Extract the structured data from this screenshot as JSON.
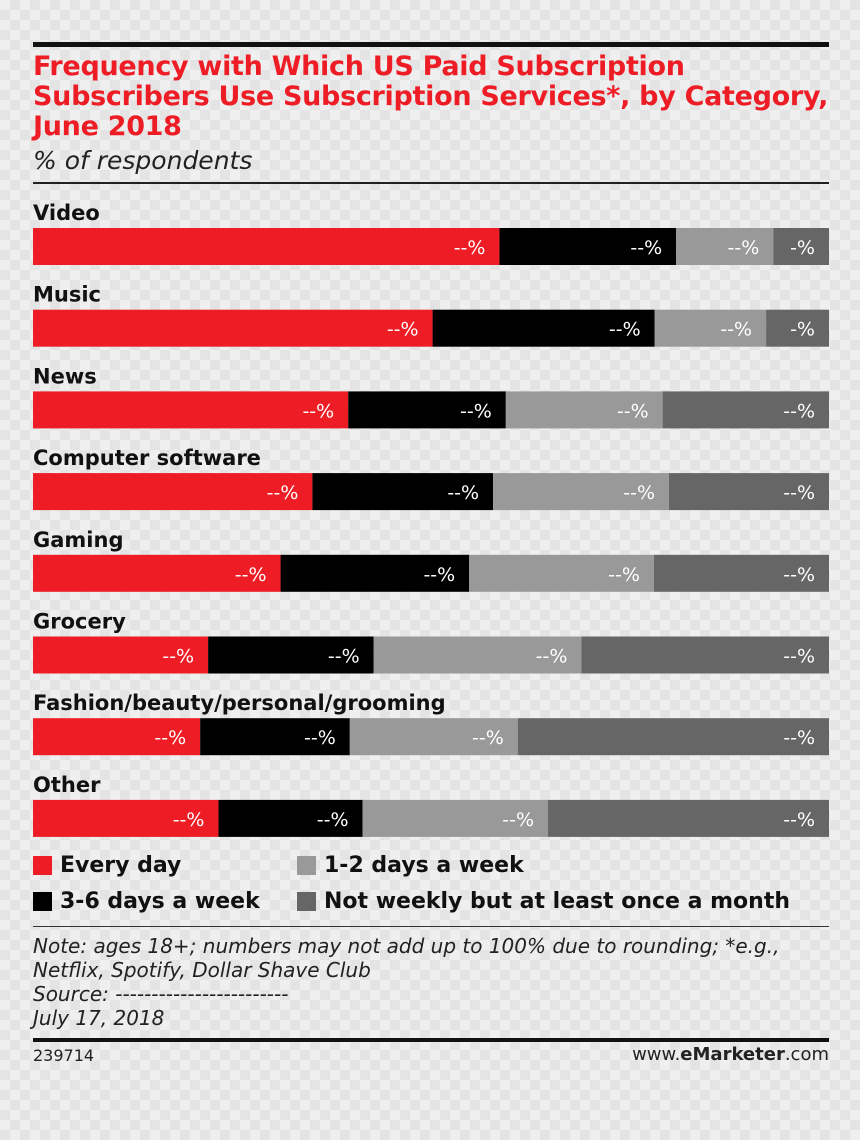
{
  "header": {
    "title": "Frequency with Which US Paid Subscription Subscribers Use Subscription Services*, by Category, June 2018",
    "subtitle": "% of respondents"
  },
  "colors": {
    "every_day": "#ee1c25",
    "days_3_6": "#000000",
    "days_1_2": "#999999",
    "not_weekly": "#666666"
  },
  "chart_data": {
    "type": "bar",
    "orientation": "horizontal",
    "stacked": true,
    "title": "Frequency with Which US Paid Subscription Subscribers Use Subscription Services*, by Category, June 2018",
    "subtitle": "% of respondents",
    "categories": [
      "Video",
      "Music",
      "News",
      "Computer software",
      "Gaming",
      "Grocery",
      "Fashion/beauty/personal/grooming",
      "Other"
    ],
    "series": [
      {
        "name": "Every day",
        "color": "#ee1c25",
        "values": [
          58.6,
          50.2,
          39.6,
          35.1,
          31.1,
          22.0,
          21.0,
          23.3
        ],
        "labels": [
          "--%",
          "--%",
          "--%",
          "--%",
          "--%",
          "--%",
          "--%",
          "--%"
        ]
      },
      {
        "name": "3-6 days a week",
        "color": "#000000",
        "values": [
          22.2,
          27.9,
          19.8,
          22.7,
          23.7,
          20.8,
          18.8,
          18.1
        ],
        "labels": [
          "--%",
          "--%",
          "--%",
          "--%",
          "--%",
          "--%",
          "--%",
          "--%"
        ]
      },
      {
        "name": "1-2 days a week",
        "color": "#999999",
        "values": [
          12.2,
          14.0,
          19.7,
          22.1,
          23.2,
          26.1,
          21.1,
          23.3
        ],
        "labels": [
          "--%",
          "--%",
          "--%",
          "--%",
          "--%",
          "--%",
          "--%",
          "--%"
        ]
      },
      {
        "name": "Not weekly but at least once a month",
        "color": "#666666",
        "values": [
          7.0,
          7.9,
          20.9,
          20.1,
          22.0,
          31.1,
          39.1,
          35.3
        ],
        "labels": [
          "-%",
          "-%",
          "--%",
          "--%",
          "--%",
          "--%",
          "--%",
          "--%"
        ]
      }
    ],
    "xlim": [
      0,
      100
    ],
    "legend_position": "bottom"
  },
  "legend": {
    "items": [
      {
        "label": "Every day",
        "color": "#ee1c25"
      },
      {
        "label": "1-2 days a week",
        "color": "#999999"
      },
      {
        "label": "3-6 days a week",
        "color": "#000000"
      },
      {
        "label": "Not weekly but at least once a month",
        "color": "#666666"
      }
    ]
  },
  "footer": {
    "note_line1": "Note: ages 18+; numbers may not add up to 100% due to rounding; *e.g.,",
    "note_line2": "Netflix, Spotify, Dollar Shave Club",
    "source": "Source: ------------------------",
    "date": "July 17, 2018",
    "chart_id": "239714",
    "brand_prefix": "www.",
    "brand_bold": "eMarketer",
    "brand_suffix": ".com"
  }
}
